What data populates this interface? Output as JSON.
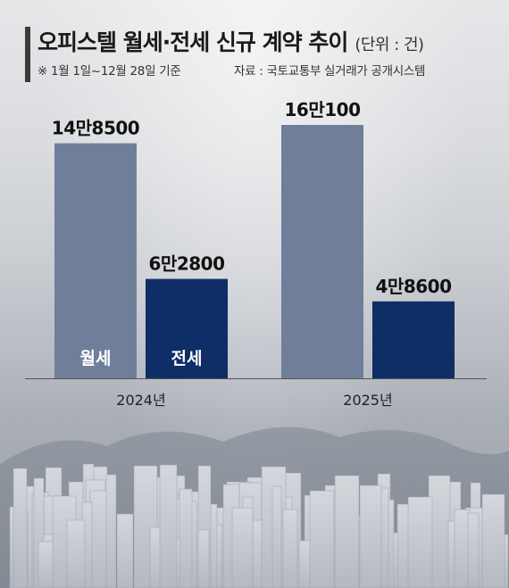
{
  "header": {
    "title": "오피스텔 월세·전세 신규 계약 추이",
    "unit": "(단위 : 건)",
    "note": "※ 1월 1일~12월 28일 기준",
    "source": "자료 : 국토교통부 실거래가 공개시스템"
  },
  "chart_data": {
    "type": "bar",
    "title": "오피스텔 월세·전세 신규 계약 추이",
    "unit": "건",
    "categories": [
      "2024년",
      "2025년"
    ],
    "series": [
      {
        "name": "월세",
        "values": [
          148500,
          160100
        ],
        "labels": [
          "14만8500",
          "16만100"
        ],
        "color": "#6f7f9a"
      },
      {
        "name": "전세",
        "values": [
          62800,
          48600
        ],
        "labels": [
          "6만2800",
          "4만8600"
        ],
        "color": "#0f2d66"
      }
    ],
    "ylim": [
      0,
      160100
    ],
    "grid": false,
    "legend": "inside-bars"
  },
  "colors": {
    "wolse": "#6f7f9a",
    "jeonse": "#0f2d66",
    "background": "#d9dbde"
  }
}
